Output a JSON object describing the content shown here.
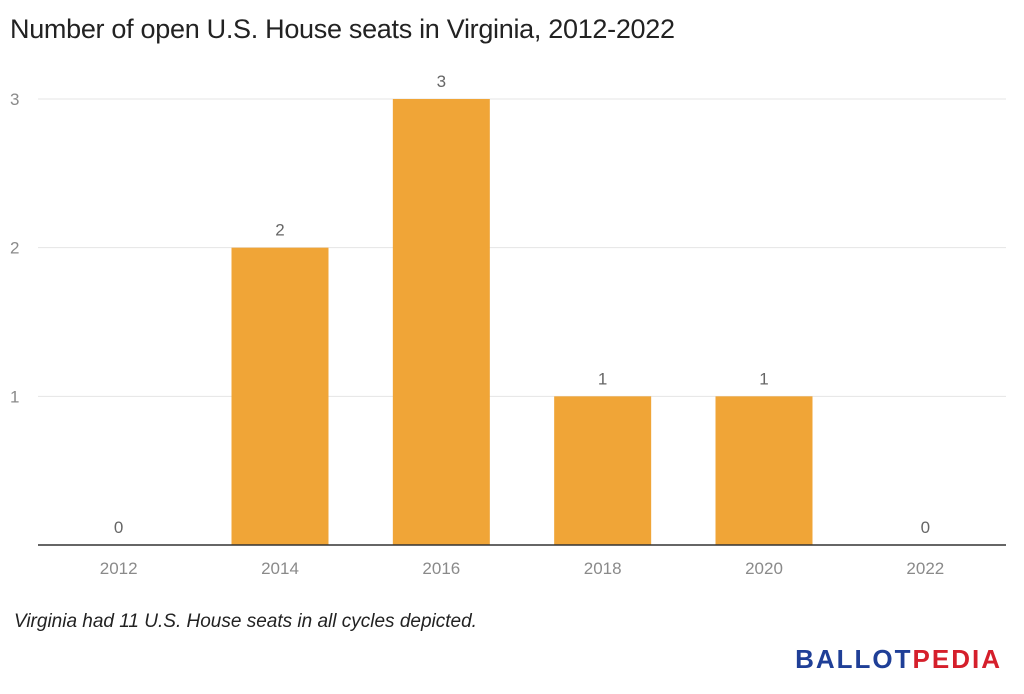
{
  "title": "Number of open U.S. House seats in Virginia, 2012-2022",
  "note": "Virginia had 11 U.S. House seats in all cycles depicted.",
  "logo": {
    "part1": "BALLOT",
    "part2": "PEDIA"
  },
  "colors": {
    "bar": "#F0A537",
    "grid": "#E5E5E5",
    "axis": "#333333",
    "tick_text": "#8A8A8A",
    "label_text": "#666666"
  },
  "chart_data": {
    "type": "bar",
    "categories": [
      "2012",
      "2014",
      "2016",
      "2018",
      "2020",
      "2022"
    ],
    "values": [
      0,
      2,
      3,
      1,
      1,
      0
    ],
    "data_labels": [
      "0",
      "2",
      "3",
      "1",
      "1",
      "0"
    ],
    "yticks": [
      1,
      2,
      3
    ],
    "ylim": [
      0,
      3
    ],
    "title": "Number of open U.S. House seats in Virginia, 2012-2022",
    "xlabel": "",
    "ylabel": "",
    "grid": true
  }
}
